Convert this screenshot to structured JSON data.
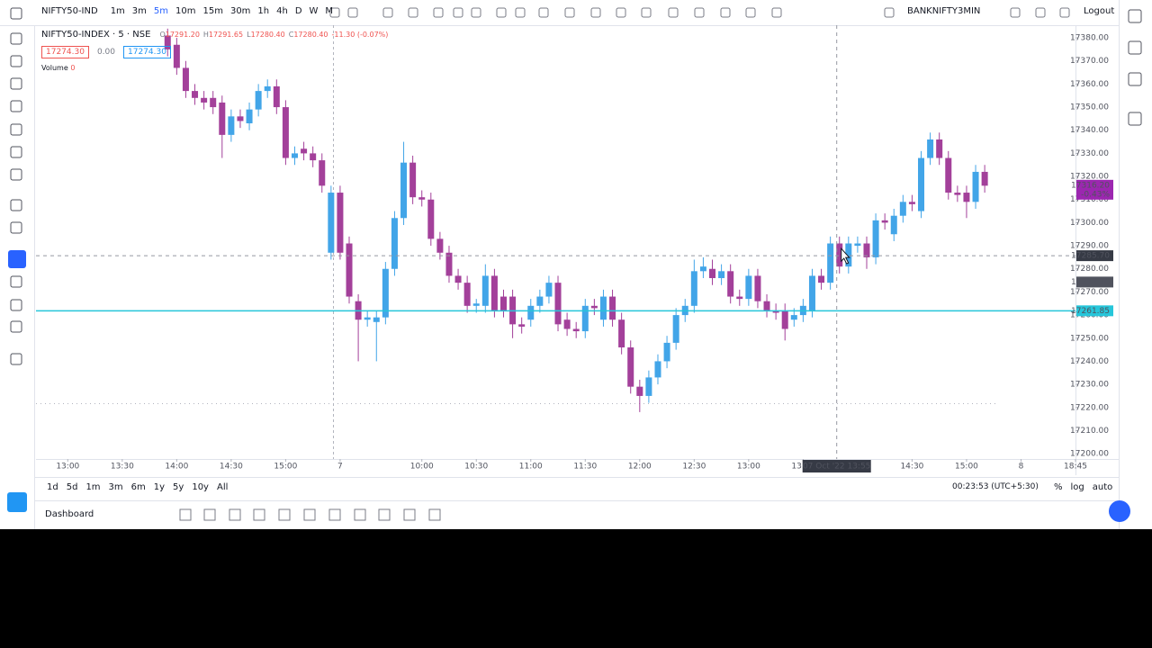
{
  "toolbar": {
    "symbol": "NIFTY50-IND",
    "intervals": [
      {
        "label": "1m"
      },
      {
        "label": "3m"
      },
      {
        "label": "5m",
        "active": true
      },
      {
        "label": "10m"
      },
      {
        "label": "15m"
      },
      {
        "label": "30m"
      },
      {
        "label": "1h"
      },
      {
        "label": "4h"
      },
      {
        "label": "D"
      },
      {
        "label": "W"
      },
      {
        "label": "M"
      }
    ],
    "compare_symbol": "BANKNIFTY3MIN",
    "logout": "Logout"
  },
  "legend": {
    "title": "NIFTY50-INDEX · 5 · NSE",
    "ohlc": [
      {
        "k": "O",
        "v": "17291.20"
      },
      {
        "k": "H",
        "v": "17291.65"
      },
      {
        "k": "L",
        "v": "17280.40"
      },
      {
        "k": "C",
        "v": "17280.40"
      }
    ],
    "change": "-11.30 (-0.07%)",
    "boxes": [
      "17274.30",
      "0.00",
      "17274.30"
    ],
    "volume_label": "Volume",
    "volume_value": "0"
  },
  "bottom": {
    "ranges": [
      "1d",
      "5d",
      "1m",
      "3m",
      "6m",
      "1y",
      "5y",
      "10y",
      "All"
    ],
    "clock": "00:23:53 (UTC+5:30)",
    "options": [
      "%",
      "log",
      "auto"
    ],
    "tab": "Dashboard"
  },
  "chart_data": {
    "type": "candlestick",
    "up_color": "#42a5e8",
    "down_color": "#a3409a",
    "open": [
      17381,
      17377,
      17367,
      17357,
      17354,
      17354,
      17352,
      17338,
      17346,
      17343,
      17349,
      17357,
      17359,
      17350,
      17328,
      17332,
      17330,
      17327,
      17287,
      17313,
      17291,
      17266,
      17258,
      17257,
      17259,
      17280,
      17302,
      17326,
      17311,
      17310,
      17293,
      17287,
      17277,
      17274,
      17264,
      17264,
      17277,
      17268,
      17268,
      17256,
      17258,
      17264,
      17268,
      17274,
      17258,
      17254,
      17253,
      17264,
      17258,
      17268,
      17258,
      17246,
      17229,
      17225,
      17233,
      17240,
      17248,
      17260,
      17264,
      17279,
      17280,
      17276,
      17279,
      17268,
      17267,
      17277,
      17266,
      17262,
      17262,
      17258,
      17260,
      17262,
      17277,
      17274,
      17291,
      17281,
      17290,
      17291,
      17285,
      17301,
      17295,
      17303,
      17309,
      17305,
      17328,
      17336,
      17328,
      17313,
      17313,
      17309,
      17322
    ],
    "high": [
      17384,
      17380,
      17370,
      17360,
      17357,
      17357,
      17355,
      17349,
      17349,
      17352,
      17360,
      17362,
      17362,
      17353,
      17333,
      17335,
      17333,
      17330,
      17316,
      17316,
      17294,
      17269,
      17262,
      17262,
      17283,
      17305,
      17335,
      17329,
      17314,
      17313,
      17296,
      17290,
      17280,
      17277,
      17267,
      17282,
      17280,
      17271,
      17271,
      17259,
      17267,
      17271,
      17277,
      17277,
      17261,
      17257,
      17267,
      17267,
      17271,
      17271,
      17261,
      17249,
      17232,
      17236,
      17243,
      17251,
      17263,
      17267,
      17284,
      17285,
      17284,
      17282,
      17282,
      17271,
      17280,
      17280,
      17269,
      17265,
      17265,
      17263,
      17267,
      17280,
      17280,
      17294,
      17294,
      17294,
      17294,
      17294,
      17304,
      17304,
      17306,
      17312,
      17312,
      17331,
      17339,
      17339,
      17331,
      17316,
      17316,
      17325,
      17325
    ],
    "low": [
      17372,
      17364,
      17354,
      17351,
      17349,
      17347,
      17328,
      17335,
      17341,
      17340,
      17346,
      17354,
      17347,
      17325,
      17325,
      17327,
      17324,
      17313,
      17284,
      17284,
      17265,
      17240,
      17255,
      17240,
      17256,
      17277,
      17299,
      17308,
      17307,
      17290,
      17284,
      17274,
      17271,
      17261,
      17261,
      17261,
      17259,
      17259,
      17250,
      17252,
      17255,
      17261,
      17265,
      17253,
      17251,
      17250,
      17250,
      17260,
      17255,
      17255,
      17243,
      17226,
      17218,
      17222,
      17230,
      17237,
      17245,
      17257,
      17261,
      17276,
      17273,
      17273,
      17265,
      17264,
      17264,
      17263,
      17259,
      17258,
      17249,
      17255,
      17257,
      17259,
      17271,
      17271,
      17278,
      17278,
      17287,
      17280,
      17282,
      17297,
      17292,
      17300,
      17305,
      17302,
      17325,
      17325,
      17310,
      17309,
      17302,
      17306,
      17313
    ],
    "close": [
      17375,
      17367,
      17357,
      17354,
      17352,
      17350,
      17338,
      17346,
      17344,
      17349,
      17357,
      17359,
      17350,
      17328,
      17330,
      17330,
      17327,
      17316,
      17313,
      17287,
      17268,
      17258,
      17259,
      17259,
      17280,
      17302,
      17326,
      17311,
      17310,
      17293,
      17287,
      17277,
      17274,
      17264,
      17265,
      17277,
      17262,
      17262,
      17256,
      17255,
      17264,
      17268,
      17274,
      17256,
      17254,
      17253,
      17264,
      17263,
      17268,
      17258,
      17246,
      17229,
      17225,
      17233,
      17240,
      17248,
      17260,
      17264,
      17279,
      17281,
      17276,
      17279,
      17268,
      17267,
      17277,
      17266,
      17262,
      17261,
      17254,
      17260,
      17264,
      17277,
      17274,
      17291,
      17281,
      17291,
      17291,
      17285,
      17301,
      17300,
      17303,
      17309,
      17308,
      17328,
      17336,
      17328,
      17313,
      17312,
      17309,
      17322,
      17316
    ],
    "xlim": [
      -14.5,
      100
    ],
    "xticks": [
      {
        "value": -11,
        "label": "13:00"
      },
      {
        "value": -5,
        "label": "13:30"
      },
      {
        "value": 1,
        "label": "14:00"
      },
      {
        "value": 7,
        "label": "14:30"
      },
      {
        "value": 13,
        "label": "15:00"
      },
      {
        "value": 19,
        "label": "7"
      },
      {
        "value": 28,
        "label": "10:00"
      },
      {
        "value": 34,
        "label": "10:30"
      },
      {
        "value": 40,
        "label": "11:00"
      },
      {
        "value": 46,
        "label": "11:30"
      },
      {
        "value": 52,
        "label": "12:00"
      },
      {
        "value": 58,
        "label": "12:30"
      },
      {
        "value": 64,
        "label": "13:00"
      },
      {
        "value": 70,
        "label": "13:30"
      },
      {
        "value": 82,
        "label": "14:30"
      },
      {
        "value": 88,
        "label": "15:00"
      },
      {
        "value": 94,
        "label": "8"
      },
      {
        "value": 100,
        "label": "18:45"
      }
    ],
    "ylim": [
      17197.7,
      17384.7
    ],
    "yticks": [
      {
        "value": 17200,
        "label": "17200.00"
      },
      {
        "value": 17210,
        "label": "17210.00"
      },
      {
        "value": 17220,
        "label": "17220.00"
      },
      {
        "value": 17230,
        "label": "17230.00"
      },
      {
        "value": 17240,
        "label": "17240.00"
      },
      {
        "value": 17250,
        "label": "17250.00"
      },
      {
        "value": 17260,
        "label": "17260.00"
      },
      {
        "value": 17270,
        "label": "17270.00"
      },
      {
        "value": 17280,
        "label": "17280.00"
      },
      {
        "value": 17290,
        "label": "17290.00"
      },
      {
        "value": 17300,
        "label": "17300.00"
      },
      {
        "value": 17310,
        "label": "17310.00"
      },
      {
        "value": 17320,
        "label": "17320.00"
      },
      {
        "value": 17330,
        "label": "17330.00"
      },
      {
        "value": 17340,
        "label": "17340.00"
      },
      {
        "value": 17350,
        "label": "17350.00"
      },
      {
        "value": 17360,
        "label": "17360.00"
      },
      {
        "value": 17370,
        "label": "17370.00"
      },
      {
        "value": 17380,
        "label": "17380.00"
      }
    ],
    "hline": {
      "value": 17261.85,
      "label": "17261.85",
      "color": "#26c6da"
    },
    "last_price": {
      "value": 17316.2,
      "label": "17316.20",
      "change": "-0.43%",
      "color": "#9c27b0"
    },
    "price_tag": {
      "value": 17274.3,
      "label": "17274.30",
      "color": "#50535e"
    },
    "crosshair": {
      "x": 73.7,
      "price": 17285.7,
      "price_label": "17285.70",
      "time_label": "07 Oct '22 13:55",
      "color": "#363a45"
    }
  }
}
